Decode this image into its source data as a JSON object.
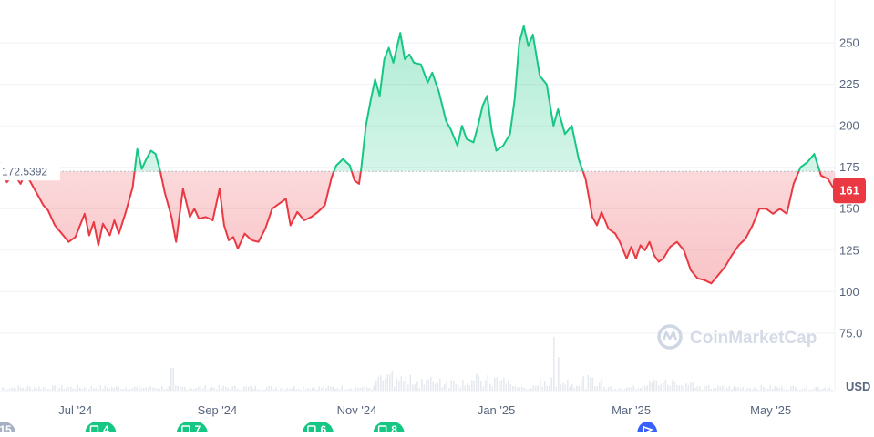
{
  "chart_data": {
    "type": "area",
    "baseline": 172.5392,
    "baseline_label": "172.5392",
    "current_value": 161,
    "current_value_label": "161",
    "currency_label": "USD",
    "watermark": "CoinMarketCap",
    "ylim": [
      65,
      265
    ],
    "y_ticks": [
      {
        "value": 250,
        "label": "250"
      },
      {
        "value": 225,
        "label": "225"
      },
      {
        "value": 200,
        "label": "200"
      },
      {
        "value": 175,
        "label": "175"
      },
      {
        "value": 150,
        "label": "150"
      },
      {
        "value": 125,
        "label": "125"
      },
      {
        "value": 100,
        "label": "100"
      },
      {
        "value": 75,
        "label": "75.0"
      }
    ],
    "x_range": [
      "2024-05-29",
      "2025-05-29"
    ],
    "x_ticks": [
      {
        "date": "2024-07-01",
        "label": "Jul '24"
      },
      {
        "date": "2024-09-01",
        "label": "Sep '24"
      },
      {
        "date": "2024-11-01",
        "label": "Nov '24"
      },
      {
        "date": "2025-01-01",
        "label": "Jan '25"
      },
      {
        "date": "2025-03-01",
        "label": "Mar '25"
      },
      {
        "date": "2025-05-01",
        "label": "May '25"
      }
    ],
    "events": [
      {
        "date": "2024-05-29",
        "label": "15",
        "kind": "gray"
      },
      {
        "date": "2024-07-12",
        "label": "4",
        "kind": "green"
      },
      {
        "date": "2024-08-21",
        "label": "7",
        "kind": "green"
      },
      {
        "date": "2024-10-15",
        "label": "6",
        "kind": "green"
      },
      {
        "date": "2024-11-15",
        "label": "8",
        "kind": "green"
      },
      {
        "date": "2025-03-08",
        "label": "",
        "kind": "blue"
      }
    ],
    "series": [
      {
        "points": [
          [
            "2024-05-29",
            178
          ],
          [
            "2024-06-01",
            166
          ],
          [
            "2024-06-04",
            171
          ],
          [
            "2024-06-07",
            165
          ],
          [
            "2024-06-09",
            171
          ],
          [
            "2024-06-11",
            167
          ],
          [
            "2024-06-13",
            162
          ],
          [
            "2024-06-15",
            157
          ],
          [
            "2024-06-17",
            152
          ],
          [
            "2024-06-19",
            149
          ],
          [
            "2024-06-22",
            140
          ],
          [
            "2024-06-25",
            135
          ],
          [
            "2024-06-28",
            130
          ],
          [
            "2024-07-01",
            133
          ],
          [
            "2024-07-03",
            140
          ],
          [
            "2024-07-05",
            147
          ],
          [
            "2024-07-07",
            134
          ],
          [
            "2024-07-09",
            142
          ],
          [
            "2024-07-11",
            128
          ],
          [
            "2024-07-13",
            141
          ],
          [
            "2024-07-16",
            134
          ],
          [
            "2024-07-18",
            143
          ],
          [
            "2024-07-20",
            135
          ],
          [
            "2024-07-23",
            148
          ],
          [
            "2024-07-26",
            163
          ],
          [
            "2024-07-28",
            186
          ],
          [
            "2024-07-30",
            174
          ],
          [
            "2024-08-01",
            180
          ],
          [
            "2024-08-03",
            185
          ],
          [
            "2024-08-05",
            183
          ],
          [
            "2024-08-07",
            173
          ],
          [
            "2024-08-09",
            160
          ],
          [
            "2024-08-12",
            145
          ],
          [
            "2024-08-14",
            130
          ],
          [
            "2024-08-17",
            162
          ],
          [
            "2024-08-20",
            145
          ],
          [
            "2024-08-22",
            150
          ],
          [
            "2024-08-24",
            144
          ],
          [
            "2024-08-27",
            145
          ],
          [
            "2024-08-30",
            143
          ],
          [
            "2024-09-02",
            162
          ],
          [
            "2024-09-04",
            140
          ],
          [
            "2024-09-06",
            131
          ],
          [
            "2024-09-08",
            133
          ],
          [
            "2024-09-10",
            126
          ],
          [
            "2024-09-13",
            135
          ],
          [
            "2024-09-16",
            131
          ],
          [
            "2024-09-19",
            130
          ],
          [
            "2024-09-22",
            138
          ],
          [
            "2024-09-25",
            150
          ],
          [
            "2024-09-28",
            153
          ],
          [
            "2024-10-01",
            156
          ],
          [
            "2024-10-03",
            140
          ],
          [
            "2024-10-06",
            148
          ],
          [
            "2024-10-09",
            143
          ],
          [
            "2024-10-12",
            145
          ],
          [
            "2024-10-15",
            148
          ],
          [
            "2024-10-18",
            152
          ],
          [
            "2024-10-21",
            169
          ],
          [
            "2024-10-23",
            176
          ],
          [
            "2024-10-26",
            180
          ],
          [
            "2024-10-29",
            176
          ],
          [
            "2024-10-31",
            167
          ],
          [
            "2024-11-02",
            165
          ],
          [
            "2024-11-03",
            175
          ],
          [
            "2024-11-05",
            200
          ],
          [
            "2024-11-07",
            215
          ],
          [
            "2024-11-09",
            228
          ],
          [
            "2024-11-11",
            218
          ],
          [
            "2024-11-13",
            240
          ],
          [
            "2024-11-15",
            247
          ],
          [
            "2024-11-17",
            238
          ],
          [
            "2024-11-20",
            256
          ],
          [
            "2024-11-22",
            240
          ],
          [
            "2024-11-24",
            243
          ],
          [
            "2024-11-26",
            238
          ],
          [
            "2024-11-29",
            237
          ],
          [
            "2024-12-02",
            226
          ],
          [
            "2024-12-04",
            232
          ],
          [
            "2024-12-07",
            220
          ],
          [
            "2024-12-10",
            203
          ],
          [
            "2024-12-12",
            198
          ],
          [
            "2024-12-15",
            188
          ],
          [
            "2024-12-17",
            200
          ],
          [
            "2024-12-19",
            192
          ],
          [
            "2024-12-22",
            190
          ],
          [
            "2024-12-24",
            200
          ],
          [
            "2024-12-26",
            212
          ],
          [
            "2024-12-28",
            218
          ],
          [
            "2024-12-30",
            197
          ],
          [
            "2025-01-01",
            185
          ],
          [
            "2025-01-04",
            188
          ],
          [
            "2025-01-07",
            195
          ],
          [
            "2025-01-09",
            216
          ],
          [
            "2025-01-11",
            250
          ],
          [
            "2025-01-13",
            260
          ],
          [
            "2025-01-15",
            248
          ],
          [
            "2025-01-17",
            255
          ],
          [
            "2025-01-20",
            230
          ],
          [
            "2025-01-23",
            225
          ],
          [
            "2025-01-26",
            200
          ],
          [
            "2025-01-28",
            210
          ],
          [
            "2025-01-31",
            195
          ],
          [
            "2025-02-03",
            200
          ],
          [
            "2025-02-06",
            180
          ],
          [
            "2025-02-09",
            168
          ],
          [
            "2025-02-12",
            145
          ],
          [
            "2025-02-14",
            140
          ],
          [
            "2025-02-16",
            148
          ],
          [
            "2025-02-19",
            138
          ],
          [
            "2025-02-22",
            135
          ],
          [
            "2025-02-24",
            130
          ],
          [
            "2025-02-27",
            120
          ],
          [
            "2025-03-01",
            127
          ],
          [
            "2025-03-03",
            120
          ],
          [
            "2025-03-05",
            128
          ],
          [
            "2025-03-07",
            125
          ],
          [
            "2025-03-09",
            130
          ],
          [
            "2025-03-11",
            122
          ],
          [
            "2025-03-13",
            118
          ],
          [
            "2025-03-15",
            120
          ],
          [
            "2025-03-18",
            127
          ],
          [
            "2025-03-21",
            130
          ],
          [
            "2025-03-24",
            125
          ],
          [
            "2025-03-27",
            113
          ],
          [
            "2025-03-30",
            108
          ],
          [
            "2025-04-02",
            107
          ],
          [
            "2025-04-05",
            105
          ],
          [
            "2025-04-08",
            110
          ],
          [
            "2025-04-11",
            115
          ],
          [
            "2025-04-14",
            122
          ],
          [
            "2025-04-17",
            128
          ],
          [
            "2025-04-20",
            132
          ],
          [
            "2025-04-23",
            140
          ],
          [
            "2025-04-26",
            150
          ],
          [
            "2025-04-29",
            150
          ],
          [
            "2025-05-02",
            147
          ],
          [
            "2025-05-05",
            150
          ],
          [
            "2025-05-08",
            147
          ],
          [
            "2025-05-11",
            165
          ],
          [
            "2025-05-14",
            175
          ],
          [
            "2025-05-17",
            178
          ],
          [
            "2025-05-20",
            183
          ],
          [
            "2025-05-23",
            170
          ],
          [
            "2025-05-26",
            168
          ],
          [
            "2025-05-29",
            161
          ]
        ]
      }
    ]
  }
}
